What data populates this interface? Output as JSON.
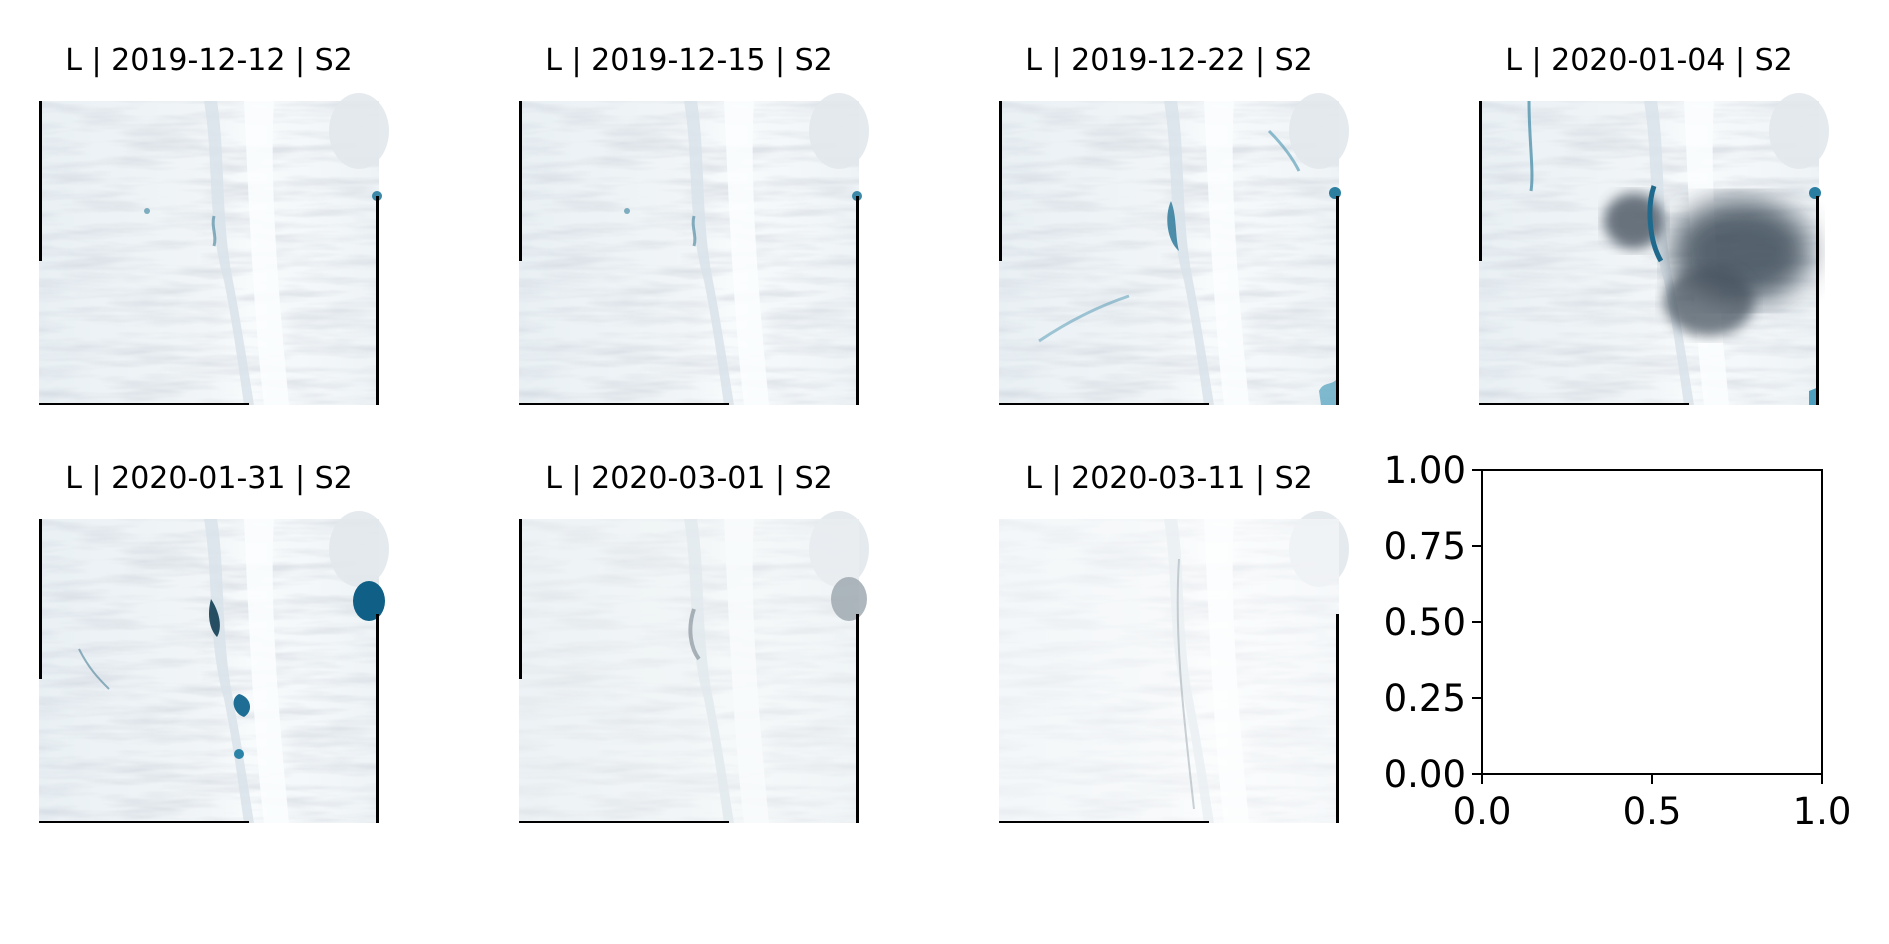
{
  "figure": {
    "panels": [
      {
        "title": "L | 2019-12-12 | S2",
        "variant": "plain"
      },
      {
        "title": "L | 2019-12-15 | S2",
        "variant": "plain"
      },
      {
        "title": "L | 2019-12-22 | S2",
        "variant": "lakes"
      },
      {
        "title": "L | 2020-01-04 | S2",
        "variant": "cloud"
      },
      {
        "title": "L | 2020-01-31 | S2",
        "variant": "melt"
      },
      {
        "title": "L | 2020-03-01 | S2",
        "variant": "grey"
      },
      {
        "title": "L | 2020-03-11 | S2",
        "variant": "bright"
      }
    ]
  },
  "chart_data": {
    "type": "scatter",
    "title": "",
    "xlabel": "",
    "ylabel": "",
    "xlim": [
      0.0,
      1.0
    ],
    "ylim": [
      0.0,
      1.0
    ],
    "x_ticks": [
      "0.0",
      "0.5",
      "1.0"
    ],
    "y_ticks": [
      "0.00",
      "0.25",
      "0.50",
      "0.75",
      "1.00"
    ],
    "series": [],
    "grid": false
  }
}
